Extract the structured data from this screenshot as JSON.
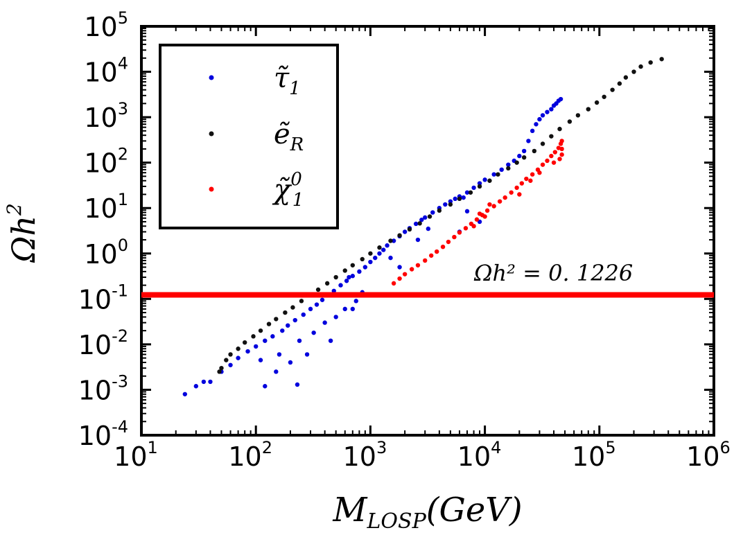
{
  "chart_data": {
    "type": "scatter",
    "title": "",
    "xlabel": "M_LOSP(GeV)",
    "xlabel_main": "M",
    "xlabel_sub": "LOSP",
    "xlabel_tail": "(GeV)",
    "ylabel": "Ωh²",
    "ylabel_main": "Ωh",
    "ylabel_sup": "2",
    "xscale": "log",
    "yscale": "log",
    "xlim": [
      10,
      1000000
    ],
    "ylim": [
      0.0001,
      100000
    ],
    "x_ticks": [
      {
        "base": "10",
        "exp": "1",
        "value": 10
      },
      {
        "base": "10",
        "exp": "2",
        "value": 100
      },
      {
        "base": "10",
        "exp": "3",
        "value": 1000
      },
      {
        "base": "10",
        "exp": "4",
        "value": 10000
      },
      {
        "base": "10",
        "exp": "5",
        "value": 100000
      },
      {
        "base": "10",
        "exp": "6",
        "value": 1000000
      }
    ],
    "y_ticks": [
      {
        "base": "10",
        "exp": "-4",
        "value": 0.0001
      },
      {
        "base": "10",
        "exp": "-3",
        "value": 0.001
      },
      {
        "base": "10",
        "exp": "-2",
        "value": 0.01
      },
      {
        "base": "10",
        "exp": "-1",
        "value": 0.1
      },
      {
        "base": "10",
        "exp": "0",
        "value": 1
      },
      {
        "base": "10",
        "exp": "1",
        "value": 10
      },
      {
        "base": "10",
        "exp": "2",
        "value": 100
      },
      {
        "base": "10",
        "exp": "3",
        "value": 1000
      },
      {
        "base": "10",
        "exp": "4",
        "value": 10000
      },
      {
        "base": "10",
        "exp": "5",
        "value": 100000
      }
    ],
    "legend_position": "top-left",
    "grid": false,
    "reference_line": {
      "y": 0.1226,
      "label": "Ωh² = 0. 1226",
      "color": "#ff0000"
    },
    "series": [
      {
        "name": "τ̃1",
        "legend_main": "τ̃",
        "legend_sub": "1",
        "color": "#0000dd",
        "points": [
          [
            24,
            0.0008
          ],
          [
            30,
            0.0012
          ],
          [
            35,
            0.0015
          ],
          [
            40,
            0.0015
          ],
          [
            50,
            0.0025
          ],
          [
            60,
            0.0035
          ],
          [
            70,
            0.005
          ],
          [
            85,
            0.007
          ],
          [
            100,
            0.009
          ],
          [
            110,
            0.0045
          ],
          [
            120,
            0.0012
          ],
          [
            120,
            0.012
          ],
          [
            140,
            0.015
          ],
          [
            150,
            0.0025
          ],
          [
            160,
            0.006
          ],
          [
            170,
            0.02
          ],
          [
            190,
            0.026
          ],
          [
            200,
            0.004
          ],
          [
            220,
            0.034
          ],
          [
            230,
            0.0013
          ],
          [
            240,
            0.012
          ],
          [
            260,
            0.045
          ],
          [
            280,
            0.006
          ],
          [
            300,
            0.06
          ],
          [
            320,
            0.018
          ],
          [
            340,
            0.075
          ],
          [
            380,
            0.095
          ],
          [
            400,
            0.03
          ],
          [
            420,
            0.12
          ],
          [
            450,
            0.012
          ],
          [
            480,
            0.15
          ],
          [
            500,
            0.04
          ],
          [
            550,
            0.2
          ],
          [
            600,
            0.06
          ],
          [
            620,
            0.25
          ],
          [
            700,
            0.32
          ],
          [
            750,
            0.09
          ],
          [
            800,
            0.4
          ],
          [
            850,
            0.14
          ],
          [
            900,
            0.5
          ],
          [
            1000,
            0.65
          ],
          [
            1100,
            0.8
          ],
          [
            1200,
            1.0
          ],
          [
            1300,
            1.2
          ],
          [
            1400,
            1.5
          ],
          [
            1600,
            1.9
          ],
          [
            1800,
            2.4
          ],
          [
            2000,
            3.0
          ],
          [
            2200,
            3.6
          ],
          [
            2500,
            4.5
          ],
          [
            2800,
            5.5
          ],
          [
            3000,
            6.2
          ],
          [
            3500,
            8.0
          ],
          [
            4000,
            10
          ],
          [
            4500,
            12
          ],
          [
            5000,
            14
          ],
          [
            5500,
            16
          ],
          [
            6000,
            18
          ],
          [
            6500,
            17
          ],
          [
            7000,
            22
          ],
          [
            8000,
            28
          ],
          [
            9000,
            35
          ],
          [
            10000,
            42
          ],
          [
            12000,
            55
          ],
          [
            14000,
            70
          ],
          [
            16000,
            90
          ],
          [
            18000,
            110
          ],
          [
            20000,
            140
          ],
          [
            22000,
            180
          ],
          [
            24000,
            300
          ],
          [
            26000,
            500
          ],
          [
            28000,
            700
          ],
          [
            30000,
            900
          ],
          [
            32000,
            1100
          ],
          [
            35000,
            1300
          ],
          [
            38000,
            1500
          ],
          [
            40000,
            1800
          ],
          [
            42000,
            2000
          ],
          [
            44000,
            2300
          ],
          [
            46000,
            2500
          ],
          [
            6000,
            3.0
          ],
          [
            7000,
            8.5
          ],
          [
            9000,
            5.0
          ],
          [
            1500,
            0.8
          ],
          [
            1800,
            0.5
          ],
          [
            700,
            0.06
          ],
          [
            650,
            0.3
          ],
          [
            3200,
            3.5
          ],
          [
            2600,
            2.0
          ]
        ]
      },
      {
        "name": "ẽR",
        "legend_main": "ẽ",
        "legend_sub": "R",
        "color": "#111111",
        "points": [
          [
            48,
            0.0025
          ],
          [
            50,
            0.003
          ],
          [
            55,
            0.0045
          ],
          [
            60,
            0.006
          ],
          [
            70,
            0.008
          ],
          [
            80,
            0.011
          ],
          [
            95,
            0.015
          ],
          [
            110,
            0.02
          ],
          [
            130,
            0.028
          ],
          [
            150,
            0.036
          ],
          [
            180,
            0.05
          ],
          [
            210,
            0.065
          ],
          [
            250,
            0.09
          ],
          [
            300,
            0.12
          ],
          [
            350,
            0.16
          ],
          [
            420,
            0.22
          ],
          [
            500,
            0.3
          ],
          [
            600,
            0.42
          ],
          [
            700,
            0.55
          ],
          [
            850,
            0.75
          ],
          [
            1000,
            1.0
          ],
          [
            1200,
            1.35
          ],
          [
            1500,
            1.9
          ],
          [
            1800,
            2.5
          ],
          [
            2200,
            3.4
          ],
          [
            2700,
            4.6
          ],
          [
            3300,
            6.5
          ],
          [
            4000,
            8.8
          ],
          [
            5000,
            12
          ],
          [
            6000,
            16
          ],
          [
            7500,
            22
          ],
          [
            9000,
            30
          ],
          [
            11000,
            40
          ],
          [
            13000,
            55
          ],
          [
            16000,
            75
          ],
          [
            19000,
            100
          ],
          [
            22000,
            130
          ],
          [
            27000,
            180
          ],
          [
            32000,
            260
          ],
          [
            38000,
            380
          ],
          [
            45000,
            550
          ],
          [
            55000,
            800
          ],
          [
            65000,
            1100
          ],
          [
            80000,
            1500
          ],
          [
            95000,
            2100
          ],
          [
            110000,
            2800
          ],
          [
            130000,
            4000
          ],
          [
            150000,
            5500
          ],
          [
            170000,
            7500
          ],
          [
            200000,
            10000
          ],
          [
            230000,
            13000
          ],
          [
            280000,
            16000
          ],
          [
            350000,
            19000
          ]
        ]
      },
      {
        "name": "χ̃10",
        "legend_main": "χ̃",
        "legend_sub": "1",
        "legend_sup": "0",
        "color": "#ff0000",
        "points": [
          [
            1600,
            0.22
          ],
          [
            1800,
            0.28
          ],
          [
            2000,
            0.35
          ],
          [
            2300,
            0.45
          ],
          [
            2600,
            0.55
          ],
          [
            3000,
            0.7
          ],
          [
            3400,
            0.9
          ],
          [
            3800,
            1.1
          ],
          [
            4300,
            1.4
          ],
          [
            4800,
            1.8
          ],
          [
            5400,
            2.3
          ],
          [
            6000,
            2.9
          ],
          [
            6800,
            3.6
          ],
          [
            7600,
            4.5
          ],
          [
            8500,
            5.6
          ],
          [
            9500,
            7.0
          ],
          [
            10500,
            8.8
          ],
          [
            12000,
            11
          ],
          [
            13500,
            14
          ],
          [
            15000,
            17
          ],
          [
            17000,
            22
          ],
          [
            19000,
            28
          ],
          [
            21000,
            35
          ],
          [
            23000,
            44
          ],
          [
            26000,
            55
          ],
          [
            29000,
            70
          ],
          [
            32000,
            90
          ],
          [
            35000,
            110
          ],
          [
            38000,
            140
          ],
          [
            41000,
            170
          ],
          [
            44000,
            210
          ],
          [
            46000,
            260
          ],
          [
            47000,
            300
          ],
          [
            47000,
            200
          ],
          [
            47000,
            150
          ],
          [
            45000,
            120
          ],
          [
            8000,
            4.0
          ],
          [
            9000,
            7.5
          ],
          [
            10000,
            6.5
          ],
          [
            11000,
            12
          ],
          [
            20000,
            20
          ],
          [
            25000,
            40
          ],
          [
            30000,
            60
          ],
          [
            40000,
            100
          ]
        ]
      }
    ]
  }
}
